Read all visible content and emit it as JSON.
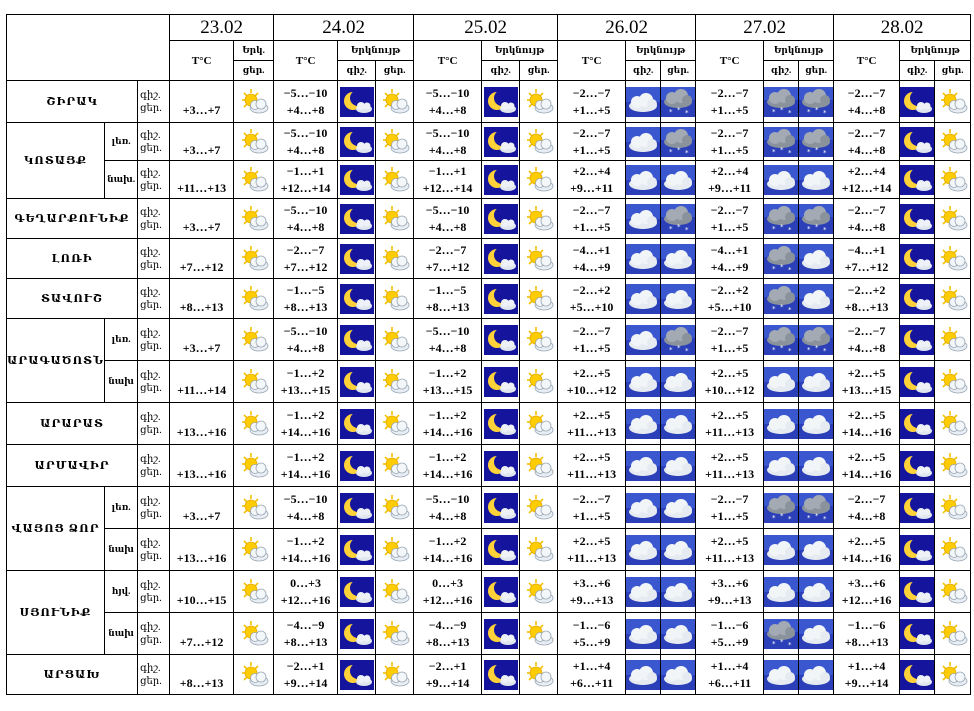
{
  "dates": [
    "23.02",
    "24.02",
    "25.02",
    "26.02",
    "27.02",
    "28.02"
  ],
  "head": {
    "temp_unit": "T°C",
    "icon_header_short": "Երկ.",
    "icon_header": "Երկնույթ",
    "night": "գիշ.",
    "day": "ցեր."
  },
  "rows": [
    {
      "region": "ՇԻՐԱԿ",
      "d1": "+3…+7",
      "n": "−5…−10",
      "d": "+4…+8",
      "n6": "−2…−7",
      "d6": "+1…+5",
      "nl": "−2…−7",
      "dl": "+4…+8",
      "i1": "sun-cloud",
      "i2": "moon",
      "i3": "sun-cloud",
      "i6a": "cloud",
      "i6b": "snow-cloud",
      "i7a": "snow-cloud",
      "i7b": "snow-cloud",
      "i8a": "moon",
      "i8b": "sun-cloud"
    },
    {
      "region": "ԿՈՏԱՅՔ",
      "zone": "լեռ.",
      "d1": "+3…+7",
      "n": "−5…−10",
      "d": "+4…+8",
      "n6": "−2…−7",
      "d6": "+1…+5",
      "nl": "−2…−7",
      "dl": "+4…+8",
      "i1": "sun-cloud",
      "i2": "moon",
      "i3": "sun-cloud",
      "i6a": "cloud",
      "i6b": "snow-cloud",
      "i7a": "snow-cloud",
      "i7b": "snow-cloud",
      "i8a": "moon",
      "i8b": "sun-cloud"
    },
    {
      "zone": "նախ.",
      "d1": "+11…+13",
      "n": "−1…+1",
      "d": "+12…+14",
      "n6": "+2…+4",
      "d6": "+9…+11",
      "nl": "+2…+4",
      "dl": "+12…+14",
      "i1": "sun-cloud",
      "i2": "moon",
      "i3": "sun-cloud",
      "i6a": "cloud",
      "i6b": "cloud",
      "i7a": "cloud",
      "i7b": "cloud",
      "i8a": "moon",
      "i8b": "sun-cloud"
    },
    {
      "region": "ԳԵՂԱՐՔՈՒՆԻՔ",
      "d1": "+3…+7",
      "n": "−5…−10",
      "d": "+4…+8",
      "n6": "−2…−7",
      "d6": "+1…+5",
      "nl": "−2…−7",
      "dl": "+4…+8",
      "i1": "sun-cloud",
      "i2": "moon",
      "i3": "sun-cloud",
      "i6a": "cloud",
      "i6b": "snow-cloud",
      "i7a": "snow-cloud",
      "i7b": "snow-cloud",
      "i8a": "moon",
      "i8b": "sun-cloud"
    },
    {
      "region": "ԼՈՌԻ",
      "d1": "+7…+12",
      "n": "−2…−7",
      "d": "+7…+12",
      "n6": "−4…+1",
      "d6": "+4…+9",
      "nl": "−4…+1",
      "dl": "+7…+12",
      "i1": "sun-cloud",
      "i2": "moon",
      "i3": "sun-cloud",
      "i6a": "cloud",
      "i6b": "cloud",
      "i7a": "snow-cloud",
      "i7b": "cloud",
      "i8a": "moon",
      "i8b": "sun-cloud"
    },
    {
      "region": "ՏԱՎՈՒՇ",
      "d1": "+8…+13",
      "n": "−1…−5",
      "d": "+8…+13",
      "n6": "−2…+2",
      "d6": "+5…+10",
      "nl": "−2…+2",
      "dl": "+8…+13",
      "i1": "sun-cloud",
      "i2": "moon",
      "i3": "sun-cloud",
      "i6a": "cloud",
      "i6b": "cloud",
      "i7a": "snow-cloud",
      "i7b": "cloud",
      "i8a": "moon",
      "i8b": "sun-cloud"
    },
    {
      "region": "ԱՐԱԳԱԾՈՏՆ",
      "zone": "լեռ.",
      "d1": "+3…+7",
      "n": "−5…−10",
      "d": "+4…+8",
      "n6": "−2…−7",
      "d6": "+1…+5",
      "nl": "−2…−7",
      "dl": "+4…+8",
      "i1": "sun-cloud",
      "i2": "moon",
      "i3": "sun-cloud",
      "i6a": "cloud",
      "i6b": "snow-cloud",
      "i7a": "snow-cloud",
      "i7b": "snow-cloud",
      "i8a": "moon",
      "i8b": "sun-cloud"
    },
    {
      "zone": "նախ",
      "d1": "+11…+14",
      "n": "−1…+2",
      "d": "+13…+15",
      "n6": "+2…+5",
      "d6": "+10…+12",
      "nl": "+2…+5",
      "dl": "+13…+15",
      "i1": "sun-cloud",
      "i2": "moon",
      "i3": "sun-cloud",
      "i6a": "cloud",
      "i6b": "cloud",
      "i7a": "cloud",
      "i7b": "cloud",
      "i8a": "moon",
      "i8b": "sun-cloud"
    },
    {
      "region": "ԱՐԱՐԱՏ",
      "d1": "+13…+16",
      "n": "−1…+2",
      "d": "+14…+16",
      "n6": "+2…+5",
      "d6": "+11…+13",
      "nl": "+2…+5",
      "dl": "+14…+16",
      "i1": "sun-cloud",
      "i2": "moon",
      "i3": "sun-cloud",
      "i6a": "cloud",
      "i6b": "cloud",
      "i7a": "cloud",
      "i7b": "cloud",
      "i8a": "moon",
      "i8b": "sun-cloud"
    },
    {
      "region": "ԱՐՄԱՎԻՐ",
      "d1": "+13…+16",
      "n": "−1…+2",
      "d": "+14…+16",
      "n6": "+2…+5",
      "d6": "+11…+13",
      "nl": "+2…+5",
      "dl": "+14…+16",
      "i1": "sun-cloud",
      "i2": "moon",
      "i3": "sun-cloud",
      "i6a": "cloud",
      "i6b": "cloud",
      "i7a": "cloud",
      "i7b": "cloud",
      "i8a": "moon",
      "i8b": "sun-cloud"
    },
    {
      "region": "ՎԱՅՈՑ ՁՈՐ",
      "zone": "լեռ.",
      "d1": "+3…+7",
      "n": "−5…−10",
      "d": "+4…+8",
      "n6": "−2…−7",
      "d6": "+1…+5",
      "nl": "−2…−7",
      "dl": "+4…+8",
      "i1": "sun-cloud",
      "i2": "moon",
      "i3": "sun-cloud",
      "i6a": "cloud",
      "i6b": "cloud",
      "i7a": "snow-cloud",
      "i7b": "snow-cloud",
      "i8a": "moon",
      "i8b": "sun-cloud"
    },
    {
      "zone": "նախ",
      "d1": "+13…+16",
      "n": "−1…+2",
      "d": "+14…+16",
      "n6": "+2…+5",
      "d6": "+11…+13",
      "nl": "+2…+5",
      "dl": "+14…+16",
      "i1": "sun-cloud",
      "i2": "moon",
      "i3": "sun-cloud",
      "i6a": "cloud",
      "i6b": "cloud",
      "i7a": "cloud",
      "i7b": "cloud",
      "i8a": "moon",
      "i8b": "sun-cloud"
    },
    {
      "region": "ՍՅՈՒՆԻՔ",
      "zone": "հյվ.",
      "d1": "+10…+15",
      "n": "0…+3",
      "d": "+12…+16",
      "n6": "+3…+6",
      "d6": "+9…+13",
      "nl": "+3…+6",
      "dl": "+12…+16",
      "i1": "sun-cloud",
      "i2": "moon",
      "i3": "sun-cloud",
      "i6a": "cloud",
      "i6b": "cloud",
      "i7a": "cloud",
      "i7b": "cloud",
      "i8a": "moon",
      "i8b": "sun-cloud"
    },
    {
      "zone": "նախ",
      "d1": "+7…+12",
      "n": "−4…−9",
      "d": "+8…+13",
      "n6": "−1…−6",
      "d6": "+5…+9",
      "nl": "−1…−6",
      "dl": "+8…+13",
      "i1": "sun-cloud",
      "i2": "moon",
      "i3": "sun-cloud",
      "i6a": "cloud",
      "i6b": "cloud",
      "i7a": "snow-cloud",
      "i7b": "cloud",
      "i8a": "moon",
      "i8b": "sun-cloud"
    },
    {
      "region": "ԱՐՑԱԽ",
      "d1": "+8…+13",
      "n": "−2…+1",
      "d": "+9…+14",
      "n6": "+1…+4",
      "d6": "+6…+11",
      "nl": "+1…+4",
      "dl": "+9…+14",
      "i1": "sun-cloud",
      "i2": "moon",
      "i3": "sun-cloud",
      "i6a": "cloud",
      "i6b": "cloud",
      "i7a": "cloud",
      "i7b": "cloud",
      "i8a": "moon",
      "i8b": "sun-cloud"
    }
  ]
}
